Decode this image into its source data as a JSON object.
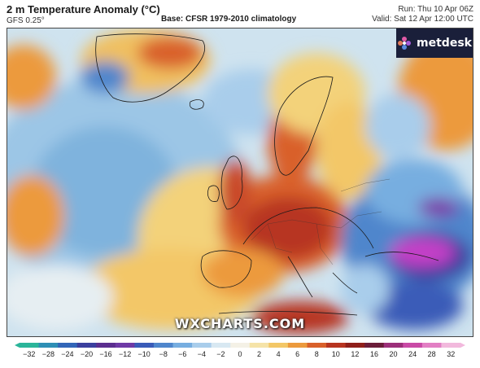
{
  "header": {
    "title": "2 m Temperature Anomaly (°C)",
    "model": "GFS 0.25°",
    "base": "Base: CFSR 1979-2010 climatology",
    "run": "Run: Thu 10 Apr 06Z",
    "valid": "Valid: Sat 12 Apr 12:00 UTC"
  },
  "logo": {
    "text": "metdesk",
    "icon": "metdesk-flower-icon"
  },
  "watermark": "WXCHARTS.COM",
  "colorbar": {
    "ticks": [
      "−32",
      "−28",
      "−24",
      "−20",
      "−16",
      "−12",
      "−10",
      "−8",
      "−6",
      "−4",
      "−2",
      "0",
      "2",
      "4",
      "6",
      "8",
      "10",
      "12",
      "16",
      "20",
      "24",
      "28",
      "32"
    ],
    "colors": [
      "#2bb59a",
      "#2e8fb5",
      "#3266b8",
      "#3b3f9e",
      "#5b2e8f",
      "#6e3aa6",
      "#3a5bb8",
      "#4f86cc",
      "#77aee0",
      "#a9cdeb",
      "#d8e8f2",
      "#f4f1e6",
      "#f5e3a8",
      "#f3c767",
      "#ec9a3d",
      "#d9602a",
      "#b73420",
      "#8f1f1a",
      "#6b1d3a",
      "#9c2f7a",
      "#c94aa6",
      "#e27fc4",
      "#f2b9dd"
    ]
  },
  "colors": {
    "cold": "#4f86cc",
    "cool": "#a9cdeb",
    "neutral": "#f4f1e6",
    "warm": "#f3c767",
    "hot": "#b73420",
    "extreme-cold": "#c440c8"
  }
}
